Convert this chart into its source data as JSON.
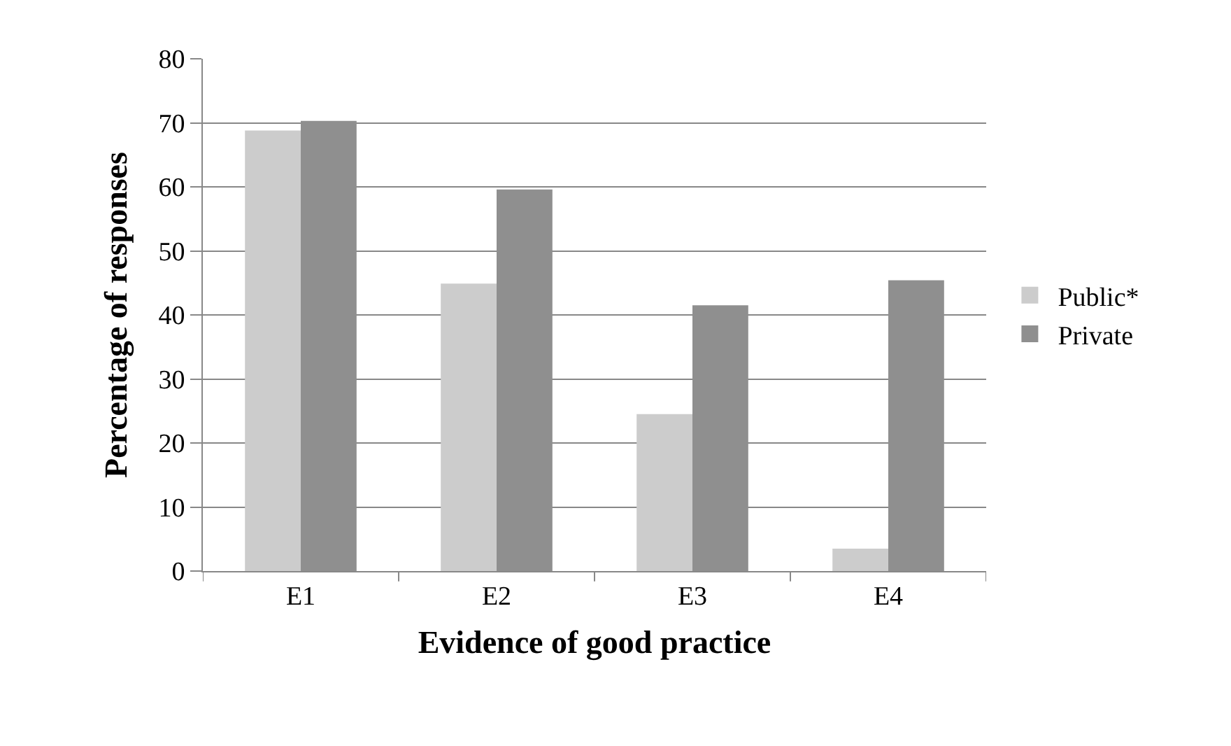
{
  "chart_data": {
    "type": "bar",
    "xlabel": "Evidence of good practice",
    "ylabel": "Percentage of responses",
    "categories": [
      "E1",
      "E2",
      "E3",
      "E4"
    ],
    "series": [
      {
        "name": "Public*",
        "color": "#cccccc",
        "values": [
          68.8,
          44.9,
          24.5,
          3.5
        ]
      },
      {
        "name": "Private",
        "color": "#8f8f8f",
        "values": [
          70.3,
          59.6,
          41.5,
          45.4
        ]
      }
    ],
    "ylim": [
      0,
      80
    ],
    "yticks": [
      0,
      10,
      20,
      30,
      40,
      50,
      60,
      70,
      80
    ],
    "grid": "y",
    "legend": "right"
  }
}
